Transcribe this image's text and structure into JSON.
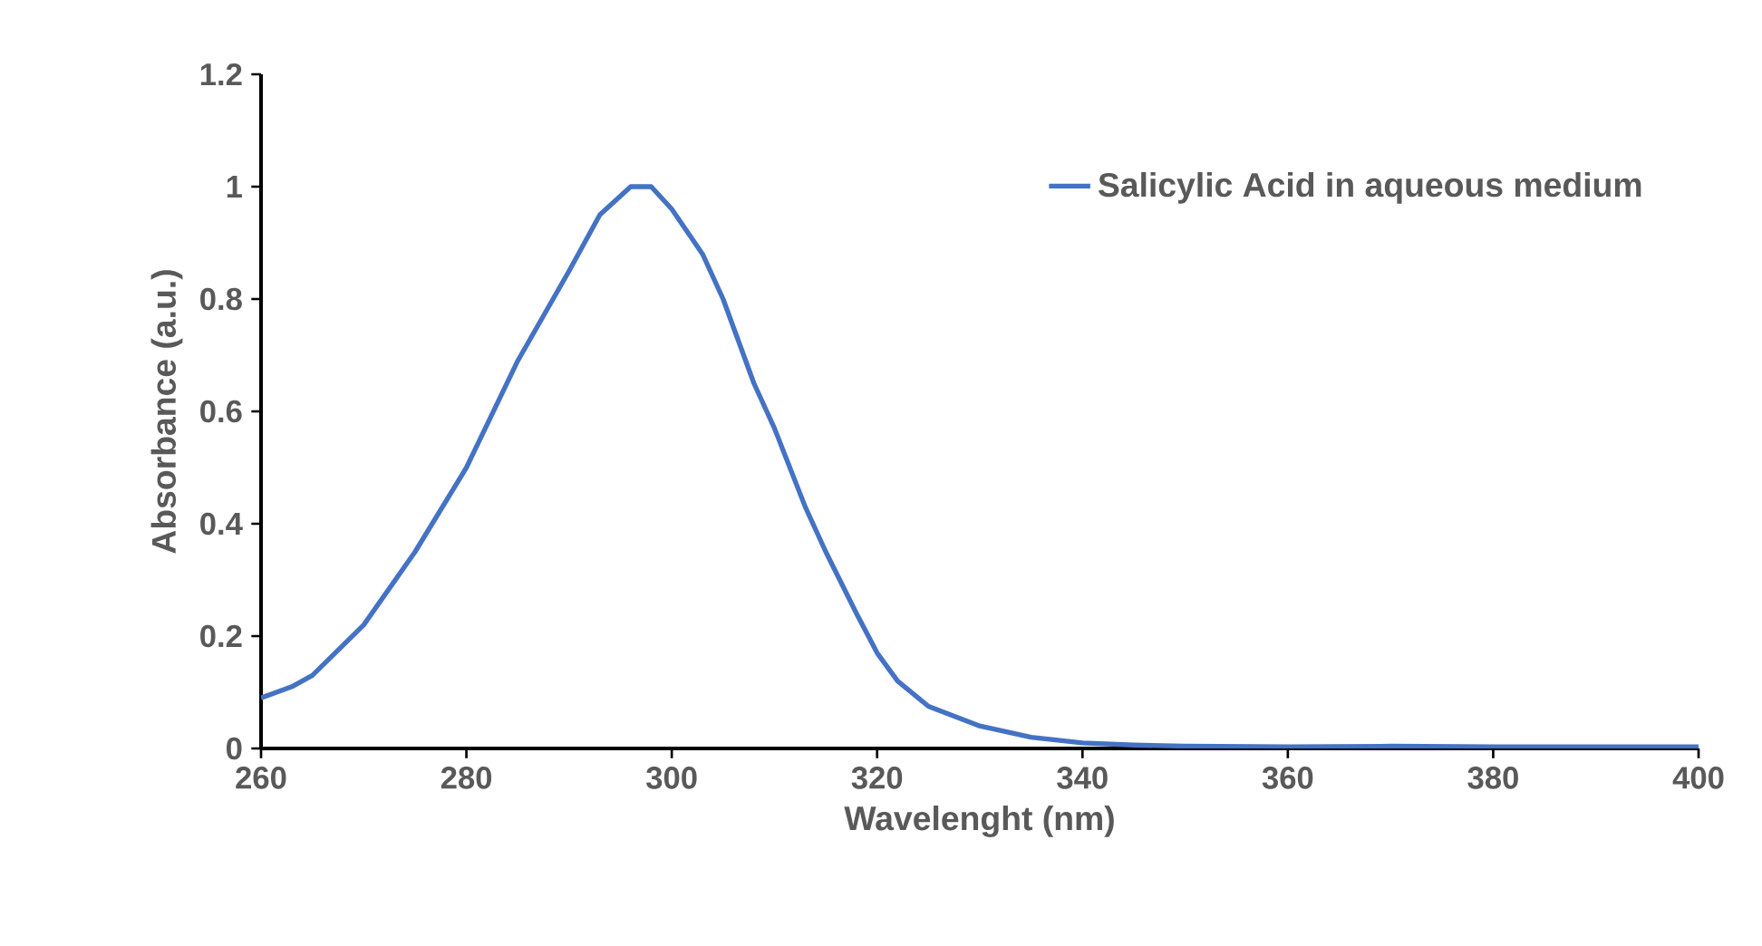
{
  "chart_data": {
    "type": "line",
    "xlabel": "Wavelenght (nm)",
    "ylabel": "Absorbance (a.u.)",
    "x": [
      260,
      263,
      265,
      270,
      275,
      280,
      285,
      290,
      293,
      296,
      298,
      300,
      303,
      305,
      308,
      310,
      313,
      315,
      318,
      320,
      322,
      325,
      330,
      335,
      340,
      345,
      350,
      360,
      370,
      380,
      390,
      400
    ],
    "series": [
      {
        "name": "Salicylic Acid in aqueous medium",
        "color": "#4472c4",
        "values": [
          0.09,
          0.11,
          0.13,
          0.22,
          0.35,
          0.5,
          0.69,
          0.85,
          0.95,
          1.0,
          1.0,
          0.96,
          0.88,
          0.8,
          0.65,
          0.57,
          0.43,
          0.35,
          0.24,
          0.17,
          0.12,
          0.075,
          0.04,
          0.02,
          0.01,
          0.006,
          0.004,
          0.003,
          0.004,
          0.003,
          0.003,
          0.003
        ]
      }
    ],
    "xlim": [
      260,
      400
    ],
    "ylim": [
      0,
      1.2
    ],
    "xticks": [
      260,
      280,
      300,
      320,
      340,
      360,
      380,
      400
    ],
    "yticks": [
      0,
      0.2,
      0.4,
      0.6,
      0.8,
      1,
      1.2
    ],
    "grid": false,
    "legend": "top right",
    "marker": "none",
    "line_style": "solid"
  }
}
